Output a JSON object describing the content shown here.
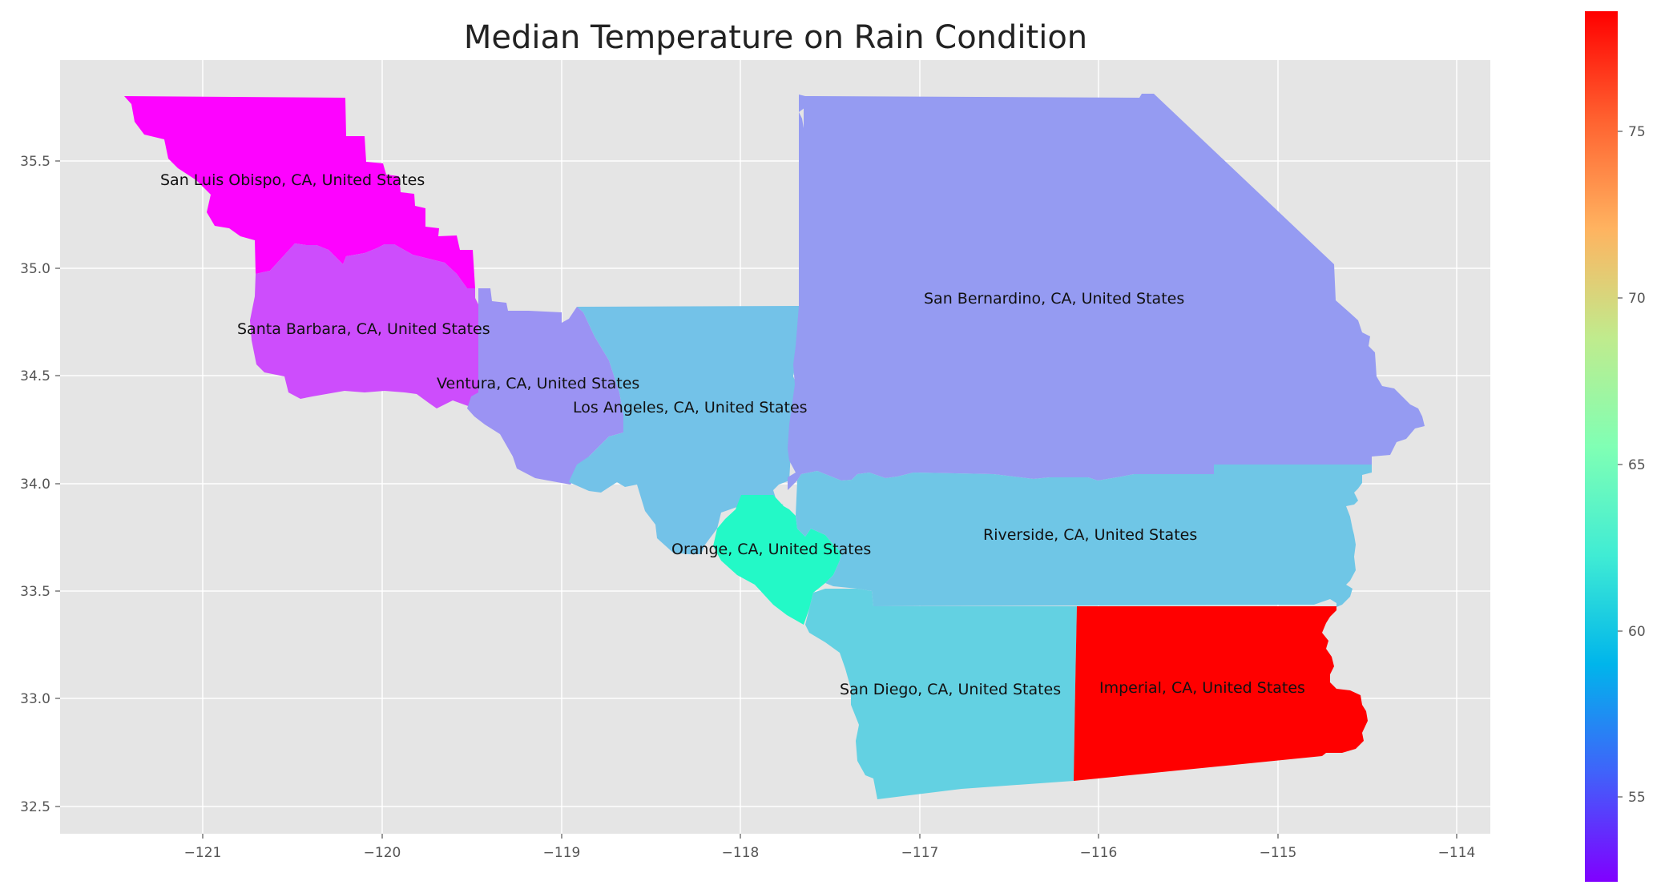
{
  "chart_data": {
    "type": "choropleth",
    "title": "Median Temperature on Rain Condition",
    "xticks": [
      "−121",
      "−120",
      "−119",
      "−118",
      "−117",
      "−116",
      "−115",
      "−114"
    ],
    "yticks": [
      "32.5",
      "33.0",
      "33.5",
      "34.0",
      "34.5",
      "35.0",
      "35.5"
    ],
    "colorbar": {
      "colormap": "rainbow",
      "range": [
        52.5,
        78
      ],
      "ticks": [
        "55",
        "60",
        "65",
        "70",
        "75"
      ]
    },
    "regions": [
      {
        "name": "San Luis Obispo, CA, United States",
        "value": 52.6
      },
      {
        "name": "Santa Barbara, CA, United States",
        "value": 55.0
      },
      {
        "name": "Ventura, CA, United States",
        "value": 57.5
      },
      {
        "name": "Los Angeles, CA, United States",
        "value": 59.5
      },
      {
        "name": "San Bernardino, CA, United States",
        "value": 57.8
      },
      {
        "name": "Orange, CA, United States",
        "value": 63.5
      },
      {
        "name": "Riverside, CA, United States",
        "value": 59.7
      },
      {
        "name": "San Diego, CA, United States",
        "value": 60.3
      },
      {
        "name": "Imperial, CA, United States",
        "value": 78.0
      }
    ]
  }
}
